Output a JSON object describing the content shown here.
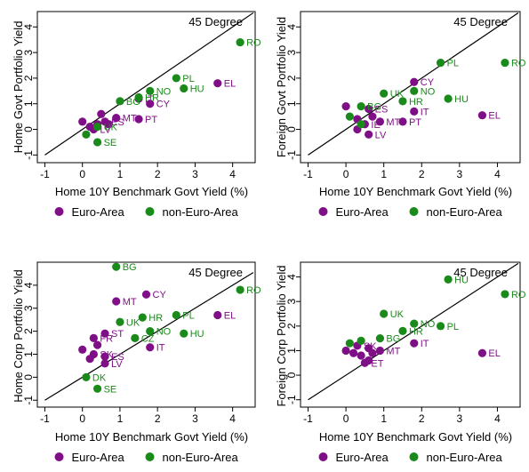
{
  "colors": {
    "euro": "#7f0f86",
    "non_euro": "#1a8a1a",
    "line": "#000000"
  },
  "legend": {
    "euro_label": "Euro-Area",
    "non_euro_label": "non-Euro-Area"
  },
  "chart_data": [
    {
      "type": "scatter",
      "ylabel": "Home Govt Portfolio Yield",
      "xlabel": "Home 10Y Benchmark Govt Yield (%)",
      "annotation": "45 Degree",
      "xlim": [
        -1.2,
        4.6
      ],
      "ylim": [
        -1.3,
        4.6
      ],
      "xticks": [
        -1,
        0,
        1,
        2,
        3,
        4
      ],
      "yticks": [
        -1,
        0,
        1,
        2,
        3,
        4
      ],
      "series": [
        {
          "name": "Euro-Area",
          "points": [
            {
              "x": 3.6,
              "y": 1.8,
              "label": "EL"
            },
            {
              "x": 1.5,
              "y": 0.4,
              "label": "PT"
            },
            {
              "x": 1.8,
              "y": 1.0,
              "label": "CY"
            },
            {
              "x": 1.5,
              "y": 1.2,
              "label": "IT"
            },
            {
              "x": 0.9,
              "y": 0.45,
              "label": "MT"
            },
            {
              "x": 0.5,
              "y": 0.6,
              "label": ""
            },
            {
              "x": 0.6,
              "y": 0.3,
              "label": "ES"
            },
            {
              "x": 0.4,
              "y": 0.2,
              "label": ""
            },
            {
              "x": 0.2,
              "y": 0.1,
              "label": ""
            },
            {
              "x": 0.0,
              "y": 0.3,
              "label": ""
            },
            {
              "x": 0.7,
              "y": 0.2,
              "label": ""
            },
            {
              "x": 0.3,
              "y": 0.0,
              "label": "LV"
            }
          ]
        },
        {
          "name": "non-Euro-Area",
          "points": [
            {
              "x": 4.2,
              "y": 3.4,
              "label": "RO"
            },
            {
              "x": 2.5,
              "y": 2.0,
              "label": "PL"
            },
            {
              "x": 2.7,
              "y": 1.6,
              "label": "HU"
            },
            {
              "x": 1.8,
              "y": 1.5,
              "label": "NO"
            },
            {
              "x": 1.5,
              "y": 1.25,
              "label": "HR"
            },
            {
              "x": 1.0,
              "y": 1.1,
              "label": "BG"
            },
            {
              "x": 0.4,
              "y": 0.1,
              "label": "UK"
            },
            {
              "x": 0.1,
              "y": -0.2,
              "label": ""
            },
            {
              "x": 0.4,
              "y": -0.5,
              "label": "SE"
            }
          ]
        }
      ]
    },
    {
      "type": "scatter",
      "ylabel": "Foreign Govt Portfolio Yield",
      "xlabel": "Home 10Y Benchmark Govt Yield (%)",
      "annotation": "45 Degree",
      "xlim": [
        -1.2,
        4.6
      ],
      "ylim": [
        -1.3,
        4.6
      ],
      "xticks": [
        -1,
        0,
        1,
        2,
        3,
        4
      ],
      "yticks": [
        -1,
        0,
        1,
        2,
        3,
        4
      ],
      "series": [
        {
          "name": "Euro-Area",
          "points": [
            {
              "x": 3.6,
              "y": 0.55,
              "label": "EL"
            },
            {
              "x": 1.5,
              "y": 0.3,
              "label": "PT"
            },
            {
              "x": 1.8,
              "y": 1.85,
              "label": "CY"
            },
            {
              "x": 1.8,
              "y": 0.7,
              "label": "IT"
            },
            {
              "x": 0.9,
              "y": 0.3,
              "label": "MT"
            },
            {
              "x": 0.6,
              "y": 0.8,
              "label": "ES"
            },
            {
              "x": 0.0,
              "y": 0.9,
              "label": ""
            },
            {
              "x": 0.3,
              "y": 0.4,
              "label": ""
            },
            {
              "x": 0.5,
              "y": 0.2,
              "label": "IE"
            },
            {
              "x": 0.7,
              "y": 0.5,
              "label": ""
            },
            {
              "x": 0.3,
              "y": 0.0,
              "label": ""
            },
            {
              "x": 0.6,
              "y": -0.2,
              "label": "LV"
            }
          ]
        },
        {
          "name": "non-Euro-Area",
          "points": [
            {
              "x": 4.2,
              "y": 2.6,
              "label": "RO"
            },
            {
              "x": 2.5,
              "y": 2.6,
              "label": "PL"
            },
            {
              "x": 2.7,
              "y": 1.2,
              "label": "HU"
            },
            {
              "x": 1.8,
              "y": 1.5,
              "label": "NO"
            },
            {
              "x": 1.5,
              "y": 1.1,
              "label": "HR"
            },
            {
              "x": 1.0,
              "y": 1.4,
              "label": "UK"
            },
            {
              "x": 0.4,
              "y": 0.9,
              "label": "BG"
            },
            {
              "x": 0.1,
              "y": 0.5,
              "label": ""
            },
            {
              "x": 0.4,
              "y": 0.2,
              "label": ""
            }
          ]
        }
      ]
    },
    {
      "type": "scatter",
      "ylabel": "Home Corp Portfolio Yield",
      "xlabel": "Home 10Y Benchmark Govt Yield (%)",
      "annotation": "45 Degree",
      "xlim": [
        -1.2,
        4.6
      ],
      "ylim": [
        -1.3,
        5.0
      ],
      "xticks": [
        -1,
        0,
        1,
        2,
        3,
        4
      ],
      "yticks": [
        -1,
        0,
        1,
        2,
        3,
        4
      ],
      "series": [
        {
          "name": "Euro-Area",
          "points": [
            {
              "x": 3.6,
              "y": 2.7,
              "label": "EL"
            },
            {
              "x": 1.7,
              "y": 3.6,
              "label": "CY"
            },
            {
              "x": 0.9,
              "y": 3.3,
              "label": "MT"
            },
            {
              "x": 1.8,
              "y": 1.3,
              "label": "IT"
            },
            {
              "x": 0.6,
              "y": 0.9,
              "label": "ES"
            },
            {
              "x": 0.6,
              "y": 1.9,
              "label": "ST"
            },
            {
              "x": 0.3,
              "y": 1.7,
              "label": "FR"
            },
            {
              "x": 0.4,
              "y": 1.4,
              "label": ""
            },
            {
              "x": 0.0,
              "y": 1.2,
              "label": ""
            },
            {
              "x": 0.3,
              "y": 1.0,
              "label": "SK"
            },
            {
              "x": 0.2,
              "y": 0.8,
              "label": ""
            },
            {
              "x": 0.6,
              "y": 0.6,
              "label": "LV"
            }
          ]
        },
        {
          "name": "non-Euro-Area",
          "points": [
            {
              "x": 0.9,
              "y": 4.8,
              "label": "BG"
            },
            {
              "x": 4.2,
              "y": 3.8,
              "label": "RO"
            },
            {
              "x": 2.5,
              "y": 2.7,
              "label": "PL"
            },
            {
              "x": 1.6,
              "y": 2.6,
              "label": "HR"
            },
            {
              "x": 1.0,
              "y": 2.4,
              "label": "UK"
            },
            {
              "x": 1.8,
              "y": 2.0,
              "label": "NO"
            },
            {
              "x": 2.7,
              "y": 1.9,
              "label": "HU"
            },
            {
              "x": 1.4,
              "y": 1.7,
              "label": "CZ"
            },
            {
              "x": 0.1,
              "y": 0.0,
              "label": "DK"
            },
            {
              "x": 0.4,
              "y": -0.5,
              "label": "SE"
            }
          ]
        }
      ]
    },
    {
      "type": "scatter",
      "ylabel": "Foreign Corp Portfolio Yield",
      "xlabel": "Home 10Y Benchmark Govt Yield (%)",
      "annotation": "45 Degree",
      "xlim": [
        -1.2,
        4.6
      ],
      "ylim": [
        -1.3,
        4.6
      ],
      "xticks": [
        -1,
        0,
        1,
        2,
        3,
        4
      ],
      "yticks": [
        -1,
        0,
        1,
        2,
        3,
        4
      ],
      "series": [
        {
          "name": "Euro-Area",
          "points": [
            {
              "x": 3.6,
              "y": 0.9,
              "label": "EL"
            },
            {
              "x": 1.8,
              "y": 1.3,
              "label": "IT"
            },
            {
              "x": 0.9,
              "y": 1.0,
              "label": "MT"
            },
            {
              "x": 0.6,
              "y": 1.1,
              "label": ""
            },
            {
              "x": 0.3,
              "y": 1.2,
              "label": "SK"
            },
            {
              "x": 0.0,
              "y": 1.0,
              "label": ""
            },
            {
              "x": 0.2,
              "y": 0.9,
              "label": ""
            },
            {
              "x": 0.4,
              "y": 0.8,
              "label": ""
            },
            {
              "x": 0.6,
              "y": 0.6,
              "label": ""
            },
            {
              "x": 0.7,
              "y": 0.9,
              "label": ""
            },
            {
              "x": 0.5,
              "y": 0.5,
              "label": "ET"
            }
          ]
        },
        {
          "name": "non-Euro-Area",
          "points": [
            {
              "x": 2.7,
              "y": 3.9,
              "label": "HU"
            },
            {
              "x": 4.2,
              "y": 3.3,
              "label": "RO"
            },
            {
              "x": 2.5,
              "y": 2.0,
              "label": "PL"
            },
            {
              "x": 1.8,
              "y": 2.1,
              "label": "NO"
            },
            {
              "x": 1.0,
              "y": 2.5,
              "label": "UK"
            },
            {
              "x": 1.5,
              "y": 1.8,
              "label": "HR"
            },
            {
              "x": 0.9,
              "y": 1.5,
              "label": "BG"
            },
            {
              "x": 0.1,
              "y": 1.3,
              "label": ""
            },
            {
              "x": 0.4,
              "y": 1.4,
              "label": ""
            }
          ]
        }
      ]
    }
  ]
}
